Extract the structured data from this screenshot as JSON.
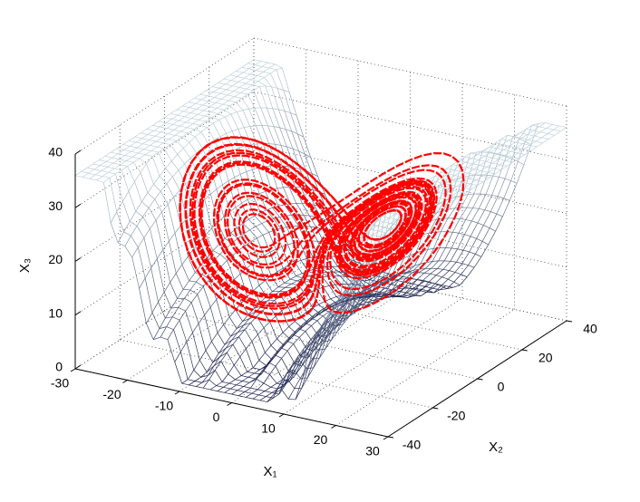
{
  "chart_data": {
    "type": "surface3d",
    "xlabel": "X₁",
    "ylabel": "X₂",
    "zlabel": "X₃",
    "xlim": [
      -30,
      30
    ],
    "xticks": [
      -30,
      -20,
      -10,
      0,
      10,
      20,
      30
    ],
    "ylim": [
      -40,
      40
    ],
    "yticks": [
      -40,
      -20,
      0,
      20,
      40
    ],
    "zlim": [
      0,
      40
    ],
    "zticks": [
      0,
      10,
      20,
      30,
      40
    ],
    "grid": true,
    "trajectory_color": "#ff0000"
  }
}
